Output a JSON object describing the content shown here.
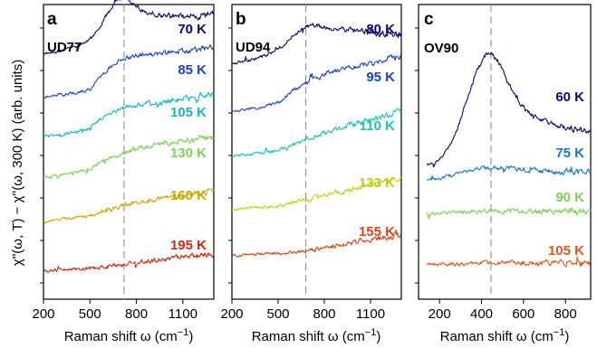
{
  "colors": {
    "T70": "#0a0a6e",
    "T80": "#0a0a6e",
    "T60": "#0a0a6e",
    "T85": "#1c44c0",
    "T95": "#1c44c0",
    "T75": "#1877c6",
    "T105a": "#17b3bf",
    "T110": "#1fc2b4",
    "T130": "#7fd05a",
    "T90": "#7fd05a",
    "T160": "#c9a802",
    "T133": "#c0cf10",
    "T195": "#cc2a12",
    "T155": "#d6461a",
    "T105c": "#d6581a"
  },
  "ylabel": "χ''(ω, T) − χ''(ω, 300 K) (arb. units)",
  "chart_data": [
    {
      "type": "line",
      "panel": "a",
      "sample": "UD77",
      "xlabel": "Raman shift ω (cm",
      "xlabel_sup": "−1",
      "xlabel_end": ")",
      "xlim": [
        200,
        1300
      ],
      "xticks": [
        200,
        500,
        800,
        1100
      ],
      "xtick_labels": [
        "200",
        "500",
        "800",
        "1100"
      ],
      "dashed_line_x": 720,
      "series": [
        {
          "name": "70 K",
          "color": "#0a0a6e",
          "x": [
            200,
            300,
            400,
            500,
            560,
            620,
            680,
            720,
            760,
            800,
            900,
            1000,
            1100,
            1200,
            1300
          ],
          "y": [
            0.85,
            0.88,
            0.92,
            1.0,
            1.12,
            1.3,
            1.42,
            1.46,
            1.42,
            1.35,
            1.28,
            1.25,
            1.26,
            1.25,
            1.27
          ]
        },
        {
          "name": "85 K",
          "color": "#1c44c0",
          "x": [
            200,
            300,
            400,
            500,
            560,
            620,
            680,
            720,
            760,
            800,
            900,
            1000,
            1100,
            1200,
            1300
          ],
          "y": [
            0.0,
            0.02,
            0.04,
            0.08,
            0.2,
            0.3,
            0.37,
            0.4,
            0.42,
            0.44,
            0.45,
            0.46,
            0.48,
            0.5,
            0.52
          ]
        },
        {
          "name": "105 K",
          "color": "#17b3bf",
          "x": [
            200,
            300,
            400,
            500,
            560,
            620,
            680,
            720,
            760,
            800,
            900,
            1000,
            1100,
            1200,
            1300
          ],
          "y": [
            0.0,
            0.02,
            0.04,
            0.08,
            0.18,
            0.24,
            0.28,
            0.3,
            0.32,
            0.33,
            0.35,
            0.37,
            0.4,
            0.42,
            0.45
          ]
        },
        {
          "name": "130 K",
          "color": "#7fd05a",
          "x": [
            200,
            300,
            400,
            500,
            560,
            620,
            680,
            720,
            760,
            800,
            900,
            1000,
            1100,
            1200,
            1300
          ],
          "y": [
            0.0,
            0.02,
            0.04,
            0.08,
            0.16,
            0.2,
            0.23,
            0.25,
            0.28,
            0.3,
            0.33,
            0.36,
            0.38,
            0.4,
            0.42
          ]
        },
        {
          "name": "160 K",
          "color": "#c9a802",
          "x": [
            200,
            300,
            400,
            500,
            560,
            620,
            680,
            720,
            760,
            800,
            900,
            1000,
            1100,
            1200,
            1300
          ],
          "y": [
            0.0,
            0.02,
            0.04,
            0.06,
            0.1,
            0.13,
            0.15,
            0.17,
            0.19,
            0.2,
            0.22,
            0.25,
            0.28,
            0.3,
            0.32
          ]
        },
        {
          "name": "195 K",
          "color": "#cc2a12",
          "x": [
            200,
            300,
            400,
            500,
            560,
            620,
            680,
            720,
            760,
            800,
            900,
            1000,
            1100,
            1200,
            1300
          ],
          "y": [
            0.0,
            0.01,
            0.02,
            0.03,
            0.04,
            0.05,
            0.06,
            0.07,
            0.08,
            0.09,
            0.11,
            0.13,
            0.15,
            0.17,
            0.19
          ]
        }
      ]
    },
    {
      "type": "line",
      "panel": "b",
      "sample": "UD94",
      "xlabel": "Raman shift ω (cm",
      "xlabel_sup": "−1",
      "xlabel_end": ")",
      "xlim": [
        200,
        1300
      ],
      "xticks": [
        200,
        500,
        800,
        1100
      ],
      "xtick_labels": [
        "200",
        "500",
        "800",
        "1100"
      ],
      "dashed_line_x": 680,
      "series": [
        {
          "name": "80 K",
          "color": "#0a0a6e",
          "x": [
            200,
            300,
            400,
            500,
            560,
            620,
            680,
            720,
            760,
            800,
            900,
            1000,
            1100,
            1200,
            1300
          ],
          "y": [
            0.8,
            0.83,
            0.88,
            0.96,
            1.06,
            1.15,
            1.22,
            1.25,
            1.24,
            1.22,
            1.2,
            1.18,
            1.16,
            1.14,
            1.12
          ]
        },
        {
          "name": "95 K",
          "color": "#1c44c0",
          "x": [
            200,
            300,
            400,
            500,
            560,
            620,
            680,
            720,
            760,
            800,
            900,
            1000,
            1100,
            1200,
            1300
          ],
          "y": [
            0.0,
            0.02,
            0.05,
            0.1,
            0.18,
            0.26,
            0.32,
            0.36,
            0.4,
            0.44,
            0.48,
            0.52,
            0.56,
            0.6,
            0.64
          ]
        },
        {
          "name": "110 K",
          "color": "#1fc2b4",
          "x": [
            200,
            300,
            400,
            500,
            560,
            620,
            680,
            720,
            760,
            800,
            900,
            1000,
            1100,
            1200,
            1300
          ],
          "y": [
            0.0,
            0.02,
            0.04,
            0.07,
            0.11,
            0.15,
            0.19,
            0.22,
            0.25,
            0.28,
            0.33,
            0.38,
            0.43,
            0.48,
            0.53
          ]
        },
        {
          "name": "133 K",
          "color": "#c0cf10",
          "x": [
            200,
            300,
            400,
            500,
            560,
            620,
            680,
            720,
            760,
            800,
            900,
            1000,
            1100,
            1200,
            1300
          ],
          "y": [
            0.0,
            0.02,
            0.03,
            0.05,
            0.07,
            0.09,
            0.11,
            0.13,
            0.15,
            0.17,
            0.21,
            0.25,
            0.29,
            0.33,
            0.37
          ]
        },
        {
          "name": "155 K",
          "color": "#d6461a",
          "x": [
            200,
            300,
            400,
            500,
            560,
            620,
            680,
            720,
            760,
            800,
            900,
            1000,
            1100,
            1200,
            1300
          ],
          "y": [
            0.0,
            0.01,
            0.02,
            0.03,
            0.04,
            0.05,
            0.06,
            0.07,
            0.08,
            0.1,
            0.13,
            0.16,
            0.19,
            0.22,
            0.25
          ]
        }
      ]
    },
    {
      "type": "line",
      "panel": "c",
      "sample": "OV90",
      "xlabel": "Raman shift ω (cm",
      "xlabel_sup": "−1",
      "xlabel_end": ")",
      "xlim": [
        100,
        920
      ],
      "xticks": [
        200,
        400,
        600,
        800
      ],
      "xtick_labels": [
        "200",
        "400",
        "600",
        "800"
      ],
      "dashed_line_x": 445,
      "series": [
        {
          "name": "60 K",
          "color": "#0a0a6e",
          "x": [
            140,
            180,
            220,
            260,
            300,
            340,
            380,
            420,
            445,
            480,
            520,
            560,
            600,
            650,
            700,
            750,
            800,
            850,
            900,
            920
          ],
          "y": [
            0.0,
            0.03,
            0.1,
            0.22,
            0.42,
            0.66,
            0.88,
            1.02,
            1.04,
            0.96,
            0.78,
            0.64,
            0.54,
            0.44,
            0.4,
            0.37,
            0.35,
            0.33,
            0.32,
            0.31
          ]
        },
        {
          "name": "75 K",
          "color": "#1877c6",
          "x": [
            140,
            200,
            260,
            320,
            380,
            440,
            500,
            560,
            620,
            680,
            740,
            800,
            860,
            920
          ],
          "y": [
            0.0,
            0.02,
            0.05,
            0.08,
            0.11,
            0.12,
            0.12,
            0.11,
            0.1,
            0.09,
            0.08,
            0.08,
            0.08,
            0.08
          ]
        },
        {
          "name": "90 K",
          "color": "#7fd05a",
          "x": [
            140,
            200,
            260,
            320,
            380,
            440,
            500,
            560,
            620,
            680,
            740,
            800,
            860,
            920
          ],
          "y": [
            0.0,
            0.0,
            0.01,
            0.01,
            0.02,
            0.02,
            0.02,
            0.02,
            0.02,
            0.02,
            0.02,
            0.02,
            0.02,
            0.02
          ]
        },
        {
          "name": "105 K",
          "color": "#d6581a",
          "x": [
            140,
            200,
            260,
            320,
            380,
            440,
            500,
            560,
            620,
            680,
            740,
            800,
            860,
            920
          ],
          "y": [
            0.0,
            0.0,
            0.0,
            0.0,
            0.01,
            0.01,
            0.01,
            0.01,
            0.01,
            0.01,
            0.01,
            0.01,
            0.01,
            0.01
          ]
        }
      ]
    }
  ]
}
